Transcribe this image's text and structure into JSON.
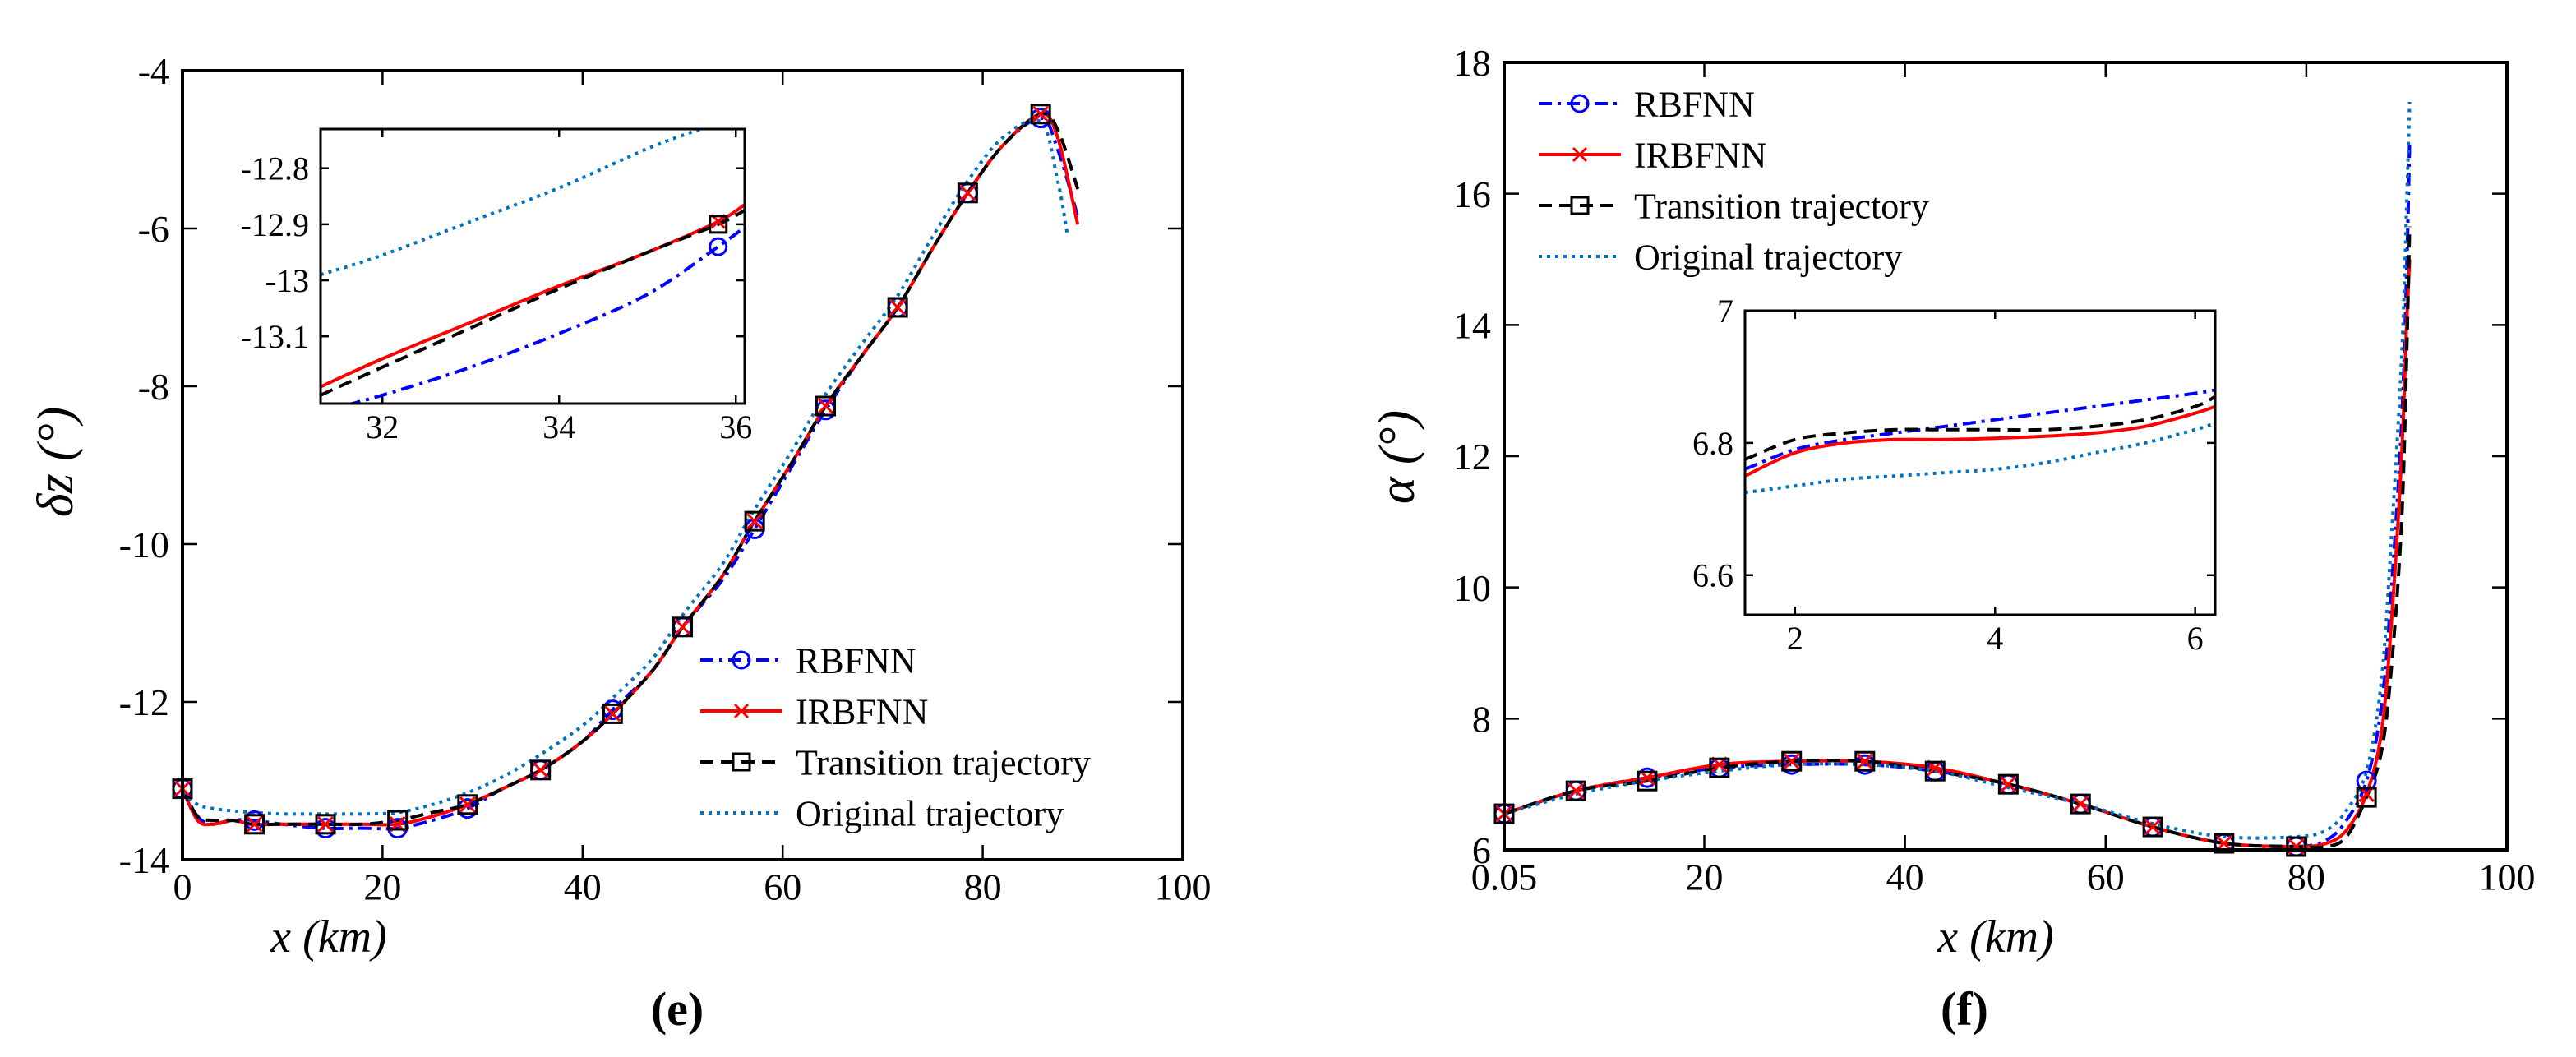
{
  "figure": {
    "panel_e_label": "(e)",
    "panel_f_label": "(f)"
  },
  "chart_data": [
    {
      "id": "e",
      "type": "line",
      "title": "",
      "xlabel": "x (km)",
      "ylabel": "δz (°)",
      "xlim": [
        0,
        100
      ],
      "ylim": [
        -14,
        -4
      ],
      "x_ticks": [
        "0",
        "20",
        "40",
        "60",
        "80",
        "100"
      ],
      "y_ticks": [
        "-14",
        "-12",
        "-10",
        "-8",
        "-6",
        "-4"
      ],
      "legend_position": "lower-right",
      "series": [
        {
          "name": "RBFNN",
          "color": "#0000ff",
          "dash": "dashdot",
          "marker": "circle",
          "x": [
            0,
            1.5,
            3,
            5,
            7,
            10,
            14,
            18,
            21.5,
            25,
            28.5,
            32,
            36,
            40,
            43,
            47,
            50,
            54,
            57,
            61,
            64.3,
            68,
            71.5,
            75,
            78.5,
            82,
            85.8,
            87.5,
            89.5
          ],
          "y": [
            -13.1,
            -13.45,
            -13.55,
            -13.5,
            -13.5,
            -13.55,
            -13.6,
            -13.6,
            -13.6,
            -13.5,
            -13.35,
            -13.1,
            -12.85,
            -12.5,
            -12.1,
            -11.6,
            -11.05,
            -10.45,
            -9.85,
            -9.0,
            -8.3,
            -7.6,
            -7.0,
            -6.25,
            -5.55,
            -4.95,
            -4.6,
            -5.0,
            -5.85
          ]
        },
        {
          "name": "IRBFNN",
          "color": "#ff0000",
          "dash": "solid",
          "marker": "x",
          "x": [
            0,
            1.5,
            3,
            5,
            7,
            10,
            14,
            18,
            21.5,
            25,
            28.5,
            32,
            36,
            40,
            43,
            47,
            50,
            54,
            57,
            61,
            64.3,
            68,
            71.5,
            75,
            78.5,
            82,
            85.8,
            87.5,
            89.5
          ],
          "y": [
            -13.1,
            -13.5,
            -13.55,
            -13.5,
            -13.55,
            -13.55,
            -13.55,
            -13.55,
            -13.55,
            -13.45,
            -13.3,
            -13.1,
            -12.85,
            -12.5,
            -12.15,
            -11.6,
            -11.05,
            -10.4,
            -9.75,
            -8.95,
            -8.25,
            -7.6,
            -7.0,
            -6.25,
            -5.55,
            -4.95,
            -4.55,
            -4.85,
            -5.95
          ]
        },
        {
          "name": "Transition trajectory",
          "color": "#000000",
          "dash": "dashed",
          "marker": "square",
          "x": [
            0,
            1.5,
            3,
            5,
            7,
            10,
            14,
            18,
            21.5,
            25,
            28.5,
            32,
            36,
            40,
            43,
            47,
            50,
            54,
            57,
            61,
            64.3,
            68,
            71.5,
            75,
            78.5,
            82,
            85.8,
            87.5,
            89.5
          ],
          "y": [
            -13.1,
            -13.45,
            -13.5,
            -13.5,
            -13.55,
            -13.55,
            -13.55,
            -13.55,
            -13.5,
            -13.4,
            -13.3,
            -13.1,
            -12.85,
            -12.5,
            -12.15,
            -11.6,
            -11.05,
            -10.4,
            -9.75,
            -8.95,
            -8.25,
            -7.6,
            -7.0,
            -6.25,
            -5.55,
            -4.95,
            -4.55,
            -4.75,
            -5.5
          ]
        },
        {
          "name": "Original trajectory",
          "color": "#0072bd",
          "dash": "dotted",
          "marker": "none",
          "x": [
            0,
            1.5,
            3,
            5,
            7,
            10,
            14,
            18,
            21.5,
            25,
            28.5,
            32,
            36,
            40,
            43,
            47,
            50,
            54,
            57,
            61,
            64.3,
            68,
            71.5,
            75,
            78.5,
            82,
            85.8,
            87.5,
            88.5
          ],
          "y": [
            -13.15,
            -13.3,
            -13.35,
            -13.38,
            -13.4,
            -13.42,
            -13.42,
            -13.42,
            -13.4,
            -13.3,
            -13.15,
            -12.95,
            -12.65,
            -12.3,
            -11.95,
            -11.45,
            -10.9,
            -10.25,
            -9.6,
            -8.8,
            -8.1,
            -7.45,
            -6.85,
            -6.1,
            -5.4,
            -4.85,
            -4.65,
            -5.4,
            -6.1
          ]
        }
      ],
      "markers_at_x": [
        0,
        7.2,
        14.3,
        21.5,
        28.5,
        35.8,
        43,
        50,
        57.2,
        64.3,
        71.5,
        78.5,
        85.8
      ],
      "inset": {
        "xlim": [
          31.3,
          36.1
        ],
        "ylim": [
          -13.22,
          -12.73
        ],
        "x_ticks": [
          "32",
          "34",
          "36"
        ],
        "y_ticks": [
          "-13.1",
          "-13",
          "-12.9",
          "-12.8"
        ],
        "series": [
          {
            "name": "RBFNN",
            "x": [
              31.3,
              32,
              33,
              34,
              35,
              35.8,
              36.1
            ],
            "y": [
              -13.235,
              -13.205,
              -13.155,
              -13.095,
              -13.025,
              -12.94,
              -12.905
            ]
          },
          {
            "name": "IRBFNN",
            "x": [
              31.3,
              32,
              33,
              34,
              35,
              35.8,
              36.1
            ],
            "y": [
              -13.19,
              -13.14,
              -13.075,
              -13.01,
              -12.95,
              -12.895,
              -12.865
            ]
          },
          {
            "name": "Transition trajectory",
            "x": [
              31.3,
              32,
              33,
              34,
              35,
              35.8,
              36.1
            ],
            "y": [
              -13.205,
              -13.155,
              -13.085,
              -13.015,
              -12.95,
              -12.9,
              -12.875
            ]
          },
          {
            "name": "Original trajectory",
            "x": [
              31.3,
              32,
              33,
              34,
              35,
              35.6
            ],
            "y": [
              -12.99,
              -12.955,
              -12.895,
              -12.835,
              -12.765,
              -12.73
            ]
          }
        ],
        "markers": [
          {
            "series": "RBFNN",
            "x": 35.8,
            "y": -12.94
          },
          {
            "series": "IRBFNN",
            "x": 35.8,
            "y": -12.895
          },
          {
            "series": "Transition trajectory",
            "x": 35.8,
            "y": -12.9
          }
        ]
      }
    },
    {
      "id": "f",
      "type": "line",
      "title": "",
      "xlabel": "x (km)",
      "ylabel": "α (°)",
      "xlim": [
        0.05,
        100
      ],
      "ylim": [
        6,
        18
      ],
      "x_ticks": [
        "0.05",
        "20",
        "40",
        "60",
        "80",
        "100"
      ],
      "y_ticks": [
        "6",
        "8",
        "10",
        "12",
        "14",
        "16",
        "18"
      ],
      "legend_position": "top-left",
      "series": [
        {
          "name": "RBFNN",
          "color": "#0000ff",
          "dash": "dashdot",
          "marker": "circle",
          "x": [
            0.05,
            7.2,
            14.3,
            21.5,
            28.7,
            36,
            43,
            50.3,
            57.5,
            64.7,
            71.8,
            79,
            82,
            84,
            86,
            87.5,
            88.5,
            89.5,
            90,
            90.3
          ],
          "y": [
            6.55,
            6.9,
            7.1,
            7.25,
            7.3,
            7.3,
            7.2,
            7.0,
            6.7,
            6.35,
            6.1,
            6.05,
            6.15,
            6.45,
            7.05,
            8.2,
            10.0,
            12.5,
            14.8,
            16.8
          ]
        },
        {
          "name": "IRBFNN",
          "color": "#ff0000",
          "dash": "solid",
          "marker": "x",
          "x": [
            0.05,
            7.2,
            14.3,
            21.5,
            28.7,
            36,
            43,
            50.3,
            57.5,
            64.7,
            71.8,
            79,
            82,
            84,
            86,
            87.5,
            88.5,
            89.5,
            90,
            90.3
          ],
          "y": [
            6.55,
            6.9,
            7.1,
            7.3,
            7.35,
            7.35,
            7.25,
            7.0,
            6.7,
            6.35,
            6.1,
            6.05,
            6.1,
            6.3,
            6.85,
            7.8,
            9.5,
            12.0,
            14.0,
            15.0
          ]
        },
        {
          "name": "Transition trajectory",
          "color": "#000000",
          "dash": "dashed",
          "marker": "square",
          "x": [
            0.05,
            7.2,
            14.3,
            21.5,
            28.7,
            36,
            43,
            50.3,
            57.5,
            64.7,
            71.8,
            79,
            82,
            84,
            86,
            87.5,
            88.5,
            89.5,
            90,
            90.3
          ],
          "y": [
            6.55,
            6.9,
            7.05,
            7.25,
            7.35,
            7.35,
            7.2,
            7.0,
            6.7,
            6.35,
            6.1,
            6.05,
            6.05,
            6.2,
            6.8,
            7.5,
            8.8,
            11.0,
            13.5,
            15.5
          ]
        },
        {
          "name": "Original trajectory",
          "color": "#0072bd",
          "dash": "dotted",
          "marker": "none",
          "x": [
            0.05,
            7.2,
            14.3,
            21.5,
            28.7,
            36,
            43,
            50.3,
            57.5,
            64.7,
            71.8,
            79,
            82,
            84,
            86,
            87.5,
            88.5,
            89.5,
            90,
            90.3
          ],
          "y": [
            6.55,
            6.85,
            7.05,
            7.2,
            7.3,
            7.3,
            7.2,
            6.95,
            6.7,
            6.4,
            6.2,
            6.2,
            6.3,
            6.6,
            7.2,
            8.6,
            10.8,
            13.5,
            15.8,
            17.4
          ]
        }
      ],
      "markers_at_x": [
        0.05,
        7.2,
        14.3,
        21.5,
        28.7,
        36,
        43,
        50.3,
        57.5,
        64.7,
        71.8,
        79,
        86
      ],
      "inset": {
        "xlim": [
          1.5,
          6.2
        ],
        "ylim": [
          6.54,
          7.0
        ],
        "x_ticks": [
          "2",
          "4",
          "6"
        ],
        "y_ticks": [
          "6.6",
          "6.8",
          "7"
        ],
        "series": [
          {
            "name": "RBFNN",
            "x": [
              1.5,
              2,
              2.5,
              3,
              3.5,
              4,
              4.5,
              5,
              5.5,
              6,
              6.2
            ],
            "y": [
              6.76,
              6.79,
              6.805,
              6.815,
              6.825,
              6.835,
              6.845,
              6.855,
              6.865,
              6.875,
              6.88
            ]
          },
          {
            "name": "IRBFNN",
            "x": [
              1.5,
              2,
              2.5,
              3,
              3.5,
              4,
              4.5,
              5,
              5.5,
              6,
              6.2
            ],
            "y": [
              6.75,
              6.785,
              6.8,
              6.805,
              6.805,
              6.807,
              6.81,
              6.815,
              6.825,
              6.845,
              6.855
            ]
          },
          {
            "name": "Transition trajectory",
            "x": [
              1.5,
              2,
              2.5,
              3,
              3.5,
              4,
              4.5,
              5,
              5.5,
              6,
              6.2
            ],
            "y": [
              6.775,
              6.805,
              6.815,
              6.82,
              6.82,
              6.82,
              6.82,
              6.825,
              6.835,
              6.855,
              6.87
            ]
          },
          {
            "name": "Original trajectory",
            "x": [
              1.5,
              2,
              2.5,
              3,
              3.5,
              4,
              4.5,
              5,
              5.5,
              6,
              6.2
            ],
            "y": [
              6.725,
              6.735,
              6.745,
              6.75,
              6.755,
              6.76,
              6.77,
              6.785,
              6.8,
              6.82,
              6.83
            ]
          }
        ]
      }
    }
  ]
}
